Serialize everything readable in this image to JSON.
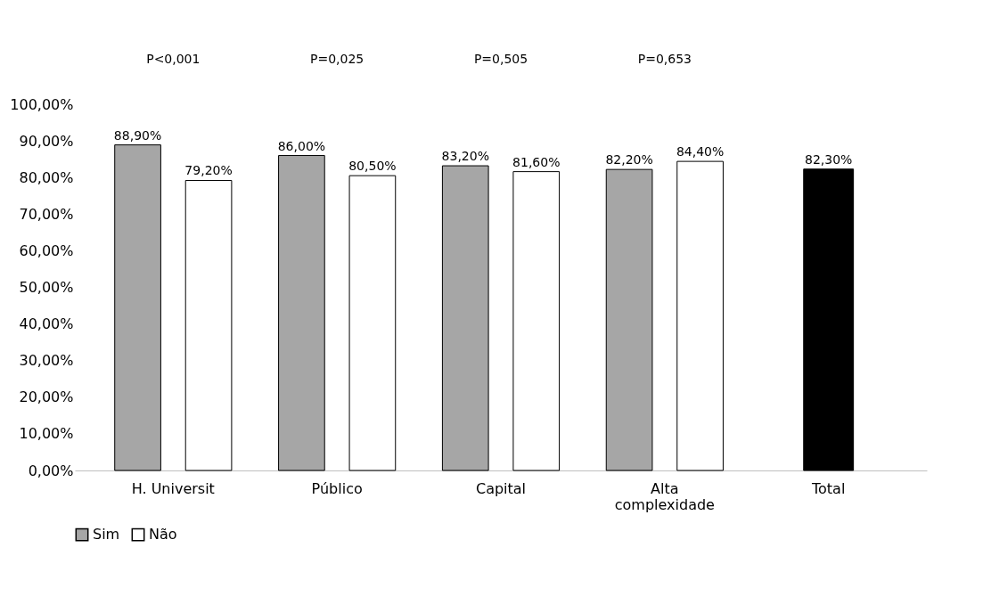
{
  "chart_data": {
    "type": "bar",
    "categories": [
      "H. Universit",
      "Público",
      "Capital",
      "Alta complexidade",
      "Total"
    ],
    "series": [
      {
        "name": "Sim",
        "color": "#a6a6a6",
        "values": [
          88.9,
          86.0,
          83.2,
          82.2,
          null
        ],
        "value_labels": [
          "88,90%",
          "86,00%",
          "83,20%",
          "82,20%",
          null
        ]
      },
      {
        "name": "Não",
        "color": "#ffffff",
        "values": [
          79.2,
          80.5,
          81.6,
          84.4,
          null
        ],
        "value_labels": [
          "79,20%",
          "80,50%",
          "81,60%",
          "84,40%",
          null
        ]
      },
      {
        "color": "#000000",
        "values": [
          null,
          null,
          null,
          null,
          82.3
        ],
        "value_labels": [
          null,
          null,
          null,
          null,
          "82,30%"
        ]
      }
    ],
    "ylim": [
      0,
      100
    ],
    "yticks": [
      {
        "value": 0,
        "label": "0,00%"
      },
      {
        "value": 10,
        "label": "10,00%"
      },
      {
        "value": 20,
        "label": "20,00%"
      },
      {
        "value": 30,
        "label": "30,00%"
      },
      {
        "value": 40,
        "label": "40,00%"
      },
      {
        "value": 50,
        "label": "50,00%"
      },
      {
        "value": 60,
        "label": "60,00%"
      },
      {
        "value": 70,
        "label": "70,00%"
      },
      {
        "value": 80,
        "label": "80,00%"
      },
      {
        "value": 90,
        "label": "90,00%"
      },
      {
        "value": 100,
        "label": "100,00%"
      }
    ],
    "annotations": [
      "P<0,001",
      "P=0,025",
      "P=0,505",
      "P=0,653"
    ],
    "grid": false,
    "legend": "bottom"
  }
}
